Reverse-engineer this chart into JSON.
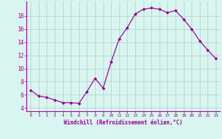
{
  "x": [
    0,
    1,
    2,
    3,
    4,
    5,
    6,
    7,
    8,
    9,
    10,
    11,
    12,
    13,
    14,
    15,
    16,
    17,
    18,
    19,
    20,
    21,
    22,
    23
  ],
  "y": [
    6.7,
    5.8,
    5.6,
    5.2,
    4.8,
    4.8,
    4.7,
    6.5,
    8.5,
    7.0,
    11.0,
    14.5,
    16.2,
    18.3,
    19.0,
    19.2,
    19.0,
    18.5,
    18.8,
    17.5,
    16.0,
    14.2,
    12.8,
    11.5
  ],
  "line_color": "#990099",
  "marker": "D",
  "marker_size": 2.0,
  "bg_color": "#d8f5f0",
  "grid_color": "#b8d0cc",
  "xlabel": "Windchill (Refroidissement éolien,°C)",
  "xlabel_color": "#990099",
  "tick_color": "#990099",
  "yticks": [
    4,
    6,
    8,
    10,
    12,
    14,
    16,
    18
  ],
  "xlim": [
    -0.5,
    23.5
  ],
  "ylim": [
    3.5,
    20.2
  ]
}
